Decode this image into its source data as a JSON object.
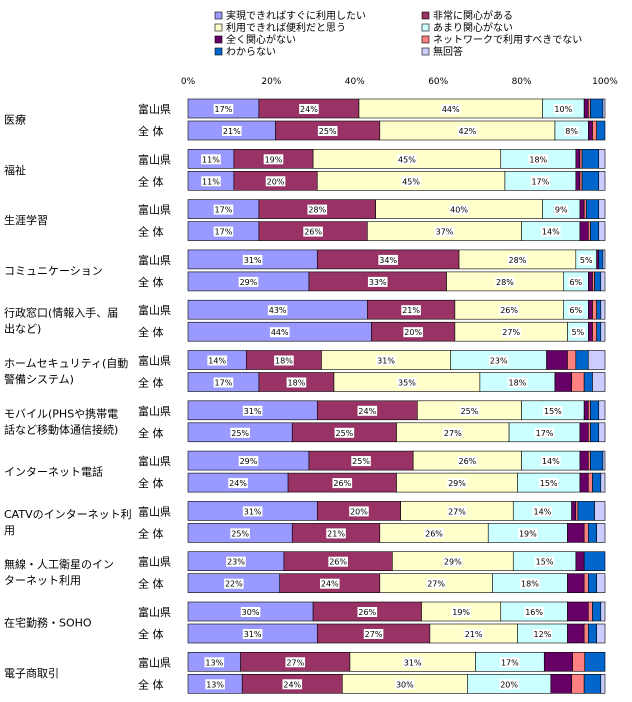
{
  "chart_data": {
    "type": "bar",
    "stacked": "percent",
    "orientation": "horizontal",
    "title": "",
    "xlabel": "",
    "ylabel": "",
    "xlim": [
      0,
      100
    ],
    "x_ticks": [
      "0%",
      "20%",
      "40%",
      "60%",
      "80%",
      "100%"
    ],
    "legend": [
      {
        "name": "実現できればすぐに利用したい",
        "color": "#9999ff"
      },
      {
        "name": "非常に関心がある",
        "color": "#993366"
      },
      {
        "name": "利用できれば便利だと思う",
        "color": "#ffffcc"
      },
      {
        "name": "あまり関心がない",
        "color": "#ccffff"
      },
      {
        "name": "全く関心がない",
        "color": "#660066"
      },
      {
        "name": "ネットワークで利用すべきでない",
        "color": "#ff8080"
      },
      {
        "name": "わからない",
        "color": "#0066cc"
      },
      {
        "name": "無回答",
        "color": "#ccccff"
      }
    ],
    "legend_placement": "top",
    "grid": false,
    "row_labels": [
      "富山県",
      "全 体"
    ],
    "categories": [
      {
        "label": [
          "医療"
        ],
        "rows": [
          {
            "values": [
              17,
              24,
              44,
              10,
              1,
              0.5,
              3,
              0.5
            ],
            "labels": [
              "17%",
              "24%",
              "44%",
              "10%"
            ]
          },
          {
            "values": [
              21,
              25,
              42,
              8,
              1,
              1,
              2,
              0
            ],
            "labels": [
              "21%",
              "25%",
              "42%",
              "8%"
            ]
          }
        ]
      },
      {
        "label": [
          "福祉"
        ],
        "rows": [
          {
            "values": [
              11,
              19,
              45,
              18,
              1,
              0.5,
              4,
              1.5
            ],
            "labels": [
              "11%",
              "19%",
              "45%",
              "18%"
            ]
          },
          {
            "values": [
              11,
              20,
              45,
              17,
              1,
              0.5,
              4,
              1.5
            ],
            "labels": [
              "11%",
              "20%",
              "45%",
              "17%"
            ]
          }
        ]
      },
      {
        "label": [
          "生涯学習"
        ],
        "rows": [
          {
            "values": [
              17,
              28,
              40,
              9,
              1,
              0.5,
              3,
              1.5
            ],
            "labels": [
              "17%",
              "28%",
              "40%",
              "9%"
            ]
          },
          {
            "values": [
              17,
              26,
              37,
              14,
              2,
              0.5,
              2,
              1.5
            ],
            "labels": [
              "17%",
              "26%",
              "37%",
              "14%"
            ]
          }
        ]
      },
      {
        "label": [
          "コミュニケーション"
        ],
        "rows": [
          {
            "values": [
              31,
              34,
              28,
              5,
              0.5,
              0,
              1,
              0.5
            ],
            "labels": [
              "31%",
              "34%",
              "28%",
              "5%"
            ]
          },
          {
            "values": [
              29,
              33,
              28,
              6,
              1,
              0.5,
              1.5,
              1
            ],
            "labels": [
              "29%",
              "33%",
              "28%",
              "6%"
            ]
          }
        ]
      },
      {
        "label": [
          "行政窓口(情報入手、届",
          "出など)"
        ],
        "rows": [
          {
            "values": [
              43,
              21,
              26,
              6,
              1,
              1,
              1,
              1
            ],
            "labels": [
              "43%",
              "21%",
              "26%",
              "6%"
            ]
          },
          {
            "values": [
              44,
              20,
              27,
              5,
              1,
              1,
              1,
              1
            ],
            "labels": [
              "44%",
              "20%",
              "27%",
              "5%"
            ]
          }
        ]
      },
      {
        "label": [
          "ホームセキュリティ(自動",
          "警備システム)"
        ],
        "rows": [
          {
            "values": [
              14,
              18,
              31,
              23,
              5,
              2,
              3,
              4
            ],
            "labels": [
              "14%",
              "18%",
              "31%",
              "23%"
            ]
          },
          {
            "values": [
              17,
              18,
              35,
              18,
              4,
              3,
              2,
              3
            ],
            "labels": [
              "17%",
              "18%",
              "35%",
              "18%"
            ]
          }
        ]
      },
      {
        "label": [
          "モバイル(PHSや携帯電",
          "話など移動体通信接続)"
        ],
        "rows": [
          {
            "values": [
              31,
              24,
              25,
              15,
              1,
              0.5,
              2,
              1.5
            ],
            "labels": [
              "31%",
              "24%",
              "25%",
              "15%"
            ]
          },
          {
            "values": [
              25,
              25,
              27,
              17,
              2,
              0.5,
              2,
              1.5
            ],
            "labels": [
              "25%",
              "25%",
              "27%",
              "17%"
            ]
          }
        ]
      },
      {
        "label": [
          "インターネット電話"
        ],
        "rows": [
          {
            "values": [
              29,
              25,
              26,
              14,
              2,
              0.5,
              3,
              0.5
            ],
            "labels": [
              "29%",
              "25%",
              "26%",
              "14%"
            ]
          },
          {
            "values": [
              24,
              26,
              29,
              15,
              2,
              1,
              2,
              1
            ],
            "labels": [
              "24%",
              "26%",
              "29%",
              "15%"
            ]
          }
        ]
      },
      {
        "label": [
          "CATVのインターネット利",
          "用"
        ],
        "rows": [
          {
            "values": [
              31,
              20,
              27,
              14,
              1,
              0.5,
              4,
              2.5
            ],
            "labels": [
              "31%",
              "20%",
              "27%",
              "14%"
            ]
          },
          {
            "values": [
              25,
              21,
              26,
              19,
              4,
              1,
              2,
              2
            ],
            "labels": [
              "25%",
              "21%",
              "26%",
              "19%"
            ]
          }
        ]
      },
      {
        "label": [
          "無線・人工衛星のイン",
          "ターネット利用"
        ],
        "rows": [
          {
            "values": [
              23,
              26,
              29,
              15,
              2,
              0,
              5,
              0
            ],
            "labels": [
              "23%",
              "26%",
              "29%",
              "15%"
            ]
          },
          {
            "values": [
              22,
              24,
              27,
              18,
              4,
              1,
              2,
              2
            ],
            "labels": [
              "22%",
              "24%",
              "27%",
              "18%"
            ]
          }
        ]
      },
      {
        "label": [
          "在宅勤務・SOHO"
        ],
        "rows": [
          {
            "values": [
              30,
              26,
              19,
              16,
              5,
              1,
              2,
              1
            ],
            "labels": [
              "30%",
              "26%",
              "19%",
              "16%"
            ]
          },
          {
            "values": [
              31,
              27,
              21,
              12,
              4,
              1,
              2,
              2
            ],
            "labels": [
              "31%",
              "27%",
              "21%",
              "12%"
            ]
          }
        ]
      },
      {
        "label": [
          "電子商取引"
        ],
        "rows": [
          {
            "values": [
              13,
              27,
              31,
              17,
              7,
              3,
              5,
              0
            ],
            "labels": [
              "13%",
              "27%",
              "31%",
              "17%"
            ]
          },
          {
            "values": [
              13,
              24,
              30,
              20,
              5,
              3,
              4,
              1
            ],
            "labels": [
              "13%",
              "24%",
              "30%",
              "20%"
            ]
          }
        ]
      }
    ]
  }
}
